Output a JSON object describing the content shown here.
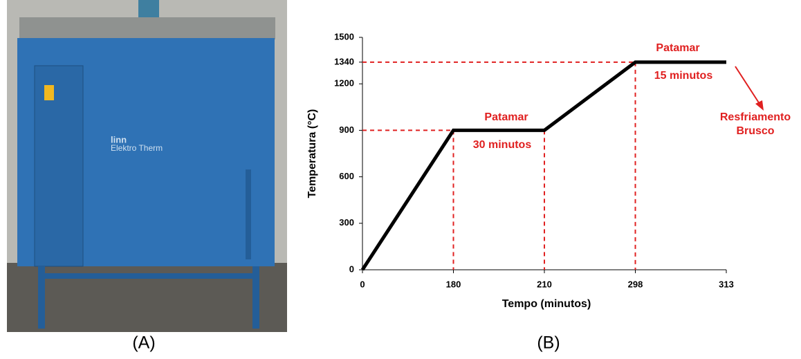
{
  "photo": {
    "label": "(A)",
    "brand": "linn",
    "model": "Elektro Therm"
  },
  "chart_data": {
    "type": "line",
    "panel_label": "(B)",
    "xlabel": "Tempo (minutos)",
    "ylabel": "Temperatura (°C)",
    "categories": [
      "0",
      "180",
      "210",
      "298",
      "313"
    ],
    "values": [
      0,
      900,
      900,
      1340,
      1340
    ],
    "color": "#000000",
    "guide_color": "#e02020",
    "ylim": [
      0,
      1500
    ],
    "yticks": [
      0,
      300,
      600,
      900,
      1200,
      1340,
      1500
    ],
    "annotations": [
      "Patamar",
      "30 minutos",
      "Patamar",
      "15 minutos",
      "Resfriamento",
      "Brusco"
    ]
  }
}
